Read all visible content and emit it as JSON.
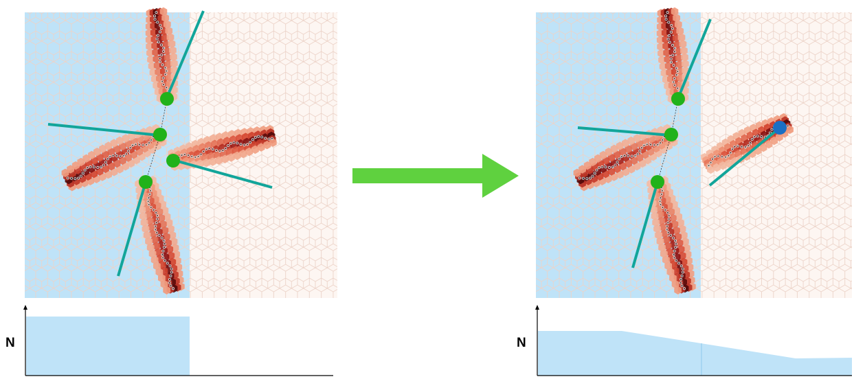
{
  "panels": [
    {
      "id": "before",
      "side_label": "N",
      "density_profile": [
        1.0,
        1.0,
        0.0,
        0.0
      ],
      "arms": [
        {
          "direction": "up",
          "angle_deg": 78
        },
        {
          "direction": "left",
          "angle_deg": 160
        },
        {
          "direction": "right",
          "angle_deg": 25
        },
        {
          "direction": "down",
          "angle_deg": 255
        }
      ],
      "junction_colors": [
        "green",
        "green",
        "green",
        "green"
      ]
    },
    {
      "id": "after",
      "side_label": "N",
      "density_profile": [
        0.75,
        0.75,
        0.55,
        0.3
      ],
      "arms": [
        {
          "direction": "up",
          "angle_deg": 78
        },
        {
          "direction": "left",
          "angle_deg": 160
        },
        {
          "direction": "right",
          "angle_deg": 25
        },
        {
          "direction": "down",
          "angle_deg": 255
        }
      ],
      "junction_colors": [
        "green",
        "green",
        "blue",
        "green"
      ]
    }
  ],
  "colors": {
    "left_region": "#bfe3f8",
    "arrow": "#5fd13f",
    "junction_green": "#21b21a",
    "junction_blue": "#1a6fc4",
    "projection_line": "#12a59a",
    "hex_outline": "#e8c9bc",
    "density_dark": "#5a0b0b",
    "density_mid": "#d8452f",
    "density_light": "#f4b59c"
  },
  "transition_arrow": {
    "direction": "right",
    "icon": "right-arrow-icon"
  }
}
